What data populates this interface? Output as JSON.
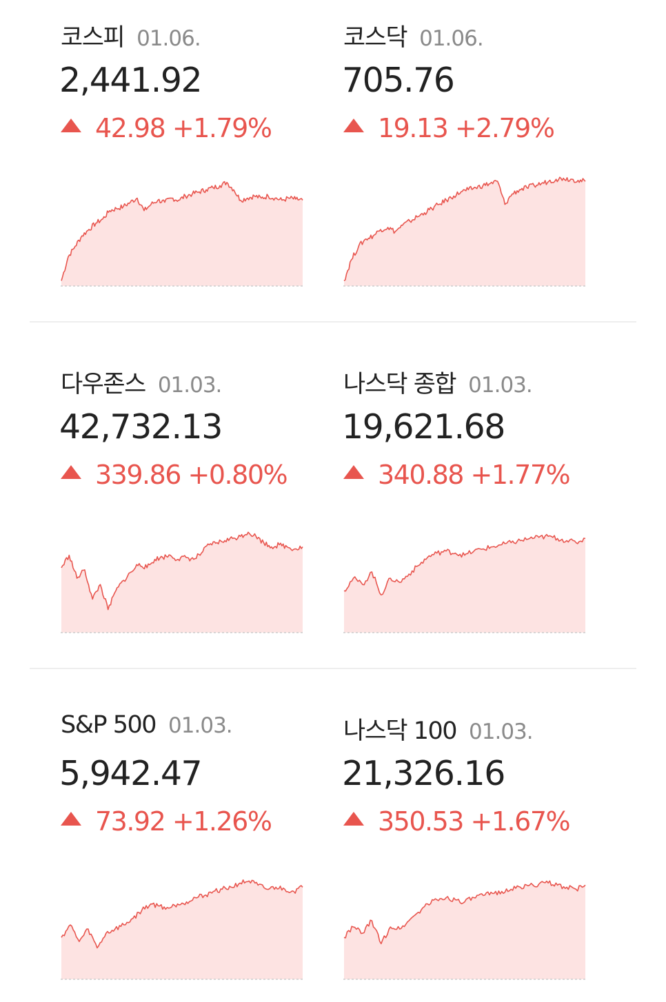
{
  "cards": [
    {
      "name": "코스피",
      "date": "01.06.",
      "price": "2,441.92",
      "change": "42.98 +1.79%",
      "direction": "up",
      "series": [
        5,
        28,
        38,
        48,
        54,
        60,
        64,
        72,
        74,
        76,
        80,
        84,
        72,
        78,
        82,
        80,
        84,
        82,
        86,
        88,
        90,
        92,
        94,
        96,
        99,
        92,
        82,
        84,
        86,
        84,
        86,
        84,
        82,
        84,
        83,
        82
      ]
    },
    {
      "name": "코스닥",
      "date": "01.06.",
      "price": "705.76",
      "change": "19.13 +2.79%",
      "direction": "up",
      "series": [
        5,
        25,
        38,
        45,
        48,
        54,
        56,
        52,
        58,
        62,
        66,
        70,
        74,
        78,
        82,
        86,
        90,
        92,
        94,
        96,
        98,
        100,
        78,
        88,
        92,
        94,
        96,
        98,
        100,
        102,
        103,
        102,
        101,
        100
      ]
    },
    {
      "name": "다우존스",
      "date": "01.03.",
      "price": "42,732.13",
      "change": "339.86 +0.80%",
      "direction": "up",
      "series": [
        62,
        74,
        52,
        60,
        32,
        46,
        22,
        40,
        50,
        58,
        66,
        62,
        70,
        72,
        74,
        70,
        72,
        70,
        76,
        84,
        86,
        88,
        90,
        92,
        96,
        92,
        86,
        82,
        84,
        82,
        80,
        82
      ]
    },
    {
      "name": "나스닥 종합",
      "date": "01.03.",
      "price": "19,621.68",
      "change": "340.88 +1.77%",
      "direction": "up",
      "series": [
        40,
        52,
        46,
        58,
        36,
        52,
        48,
        56,
        64,
        72,
        76,
        78,
        76,
        74,
        78,
        80,
        82,
        84,
        86,
        88,
        90,
        91,
        92,
        90,
        88,
        86,
        90
      ]
    },
    {
      "name": "S&P 500",
      "date": "01.03.",
      "price": "5,942.47",
      "change": "73.92 +1.26%",
      "direction": "up",
      "series": [
        40,
        52,
        36,
        48,
        30,
        44,
        48,
        52,
        58,
        66,
        72,
        70,
        68,
        72,
        74,
        78,
        80,
        84,
        86,
        88,
        92,
        94,
        90,
        86,
        88,
        86,
        84,
        88
      ]
    },
    {
      "name": "나스닥 100",
      "date": "01.03.",
      "price": "21,326.16",
      "change": "350.53 +1.67%",
      "direction": "up",
      "series": [
        40,
        50,
        44,
        56,
        34,
        50,
        48,
        56,
        64,
        72,
        76,
        78,
        76,
        74,
        78,
        80,
        82,
        84,
        86,
        88,
        90,
        91,
        92,
        90,
        88,
        86,
        90
      ]
    }
  ],
  "colors": {
    "up": "#e8554e",
    "up_fill": "#fde3e2",
    "text": "#222222",
    "muted": "#8a8a8a"
  }
}
